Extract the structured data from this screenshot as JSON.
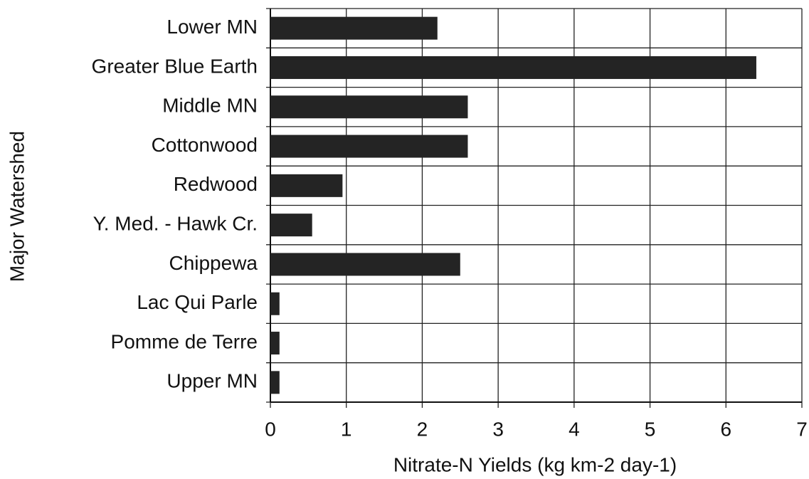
{
  "chart_data": {
    "type": "hbar",
    "categories": [
      "Lower MN",
      "Greater Blue Earth",
      "Middle MN",
      "Cottonwood",
      "Redwood",
      "Y. Med. - Hawk Cr.",
      "Chippewa",
      "Lac Qui Parle",
      "Pomme de Terre",
      "Upper MN"
    ],
    "values": [
      2.2,
      6.4,
      2.6,
      2.6,
      0.95,
      0.55,
      2.5,
      0.12,
      0.12,
      0.12
    ],
    "color": "#242424",
    "x_label": "Nitrate-N Yields (kg km-2 day-1)",
    "y_label": "Major Watershed",
    "xlim": [
      0,
      7
    ],
    "xticks": [
      0,
      1,
      2,
      3,
      4,
      5,
      6,
      7
    ],
    "grid": true
  }
}
